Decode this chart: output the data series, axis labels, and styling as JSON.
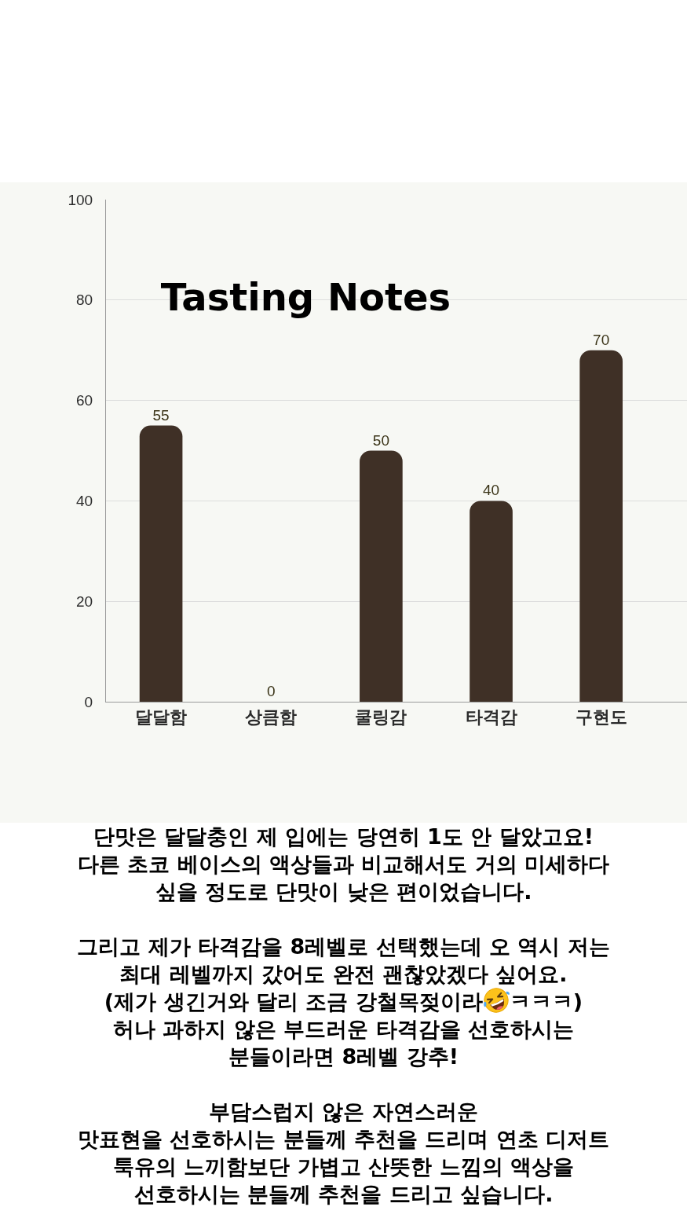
{
  "chart_data": {
    "type": "bar",
    "title": "Tasting Notes",
    "categories": [
      "달달함",
      "상큼함",
      "쿨링감",
      "타격감",
      "구현도"
    ],
    "values": [
      55,
      0,
      50,
      40,
      70
    ],
    "color": "#3f3026",
    "ylim": [
      0,
      100
    ],
    "yticks": [
      0,
      20,
      40,
      60,
      80,
      100
    ],
    "grid": "y",
    "data_labels": true,
    "annotations": [
      "단맛은 달달충인 제 입에는 당연히 1도 안 달았고요!\n다른 초코 베이스의 액상들과 비교해서도 거의 미세하다\n싶을 정도로 단맛이 낮은 편이었습니다.",
      "그리고 제가 타격감을 8레벨로 선택했는데 오 역시 저는\n최대 레벨까지 갔어도 완전 괜찮았겠다 싶어요.\n(제가 생긴거와 달리 조금 강철목젖이라🤣ㅋㅋㅋ)\n허나 과하지 않은 부드러운 타격감을 선호하시는\n분들이라면 8레벨 강추!",
      "부담스럽지 않은 자연스러운\n맛표현을 선호하시는 분들께 추천을 드리며 연초 디저트\n툭유의 느끼함보단 가볍고 산뜻한 느낌의 액상을\n선호하시는 분들께 추천을 드리고 싶습니다."
    ]
  }
}
